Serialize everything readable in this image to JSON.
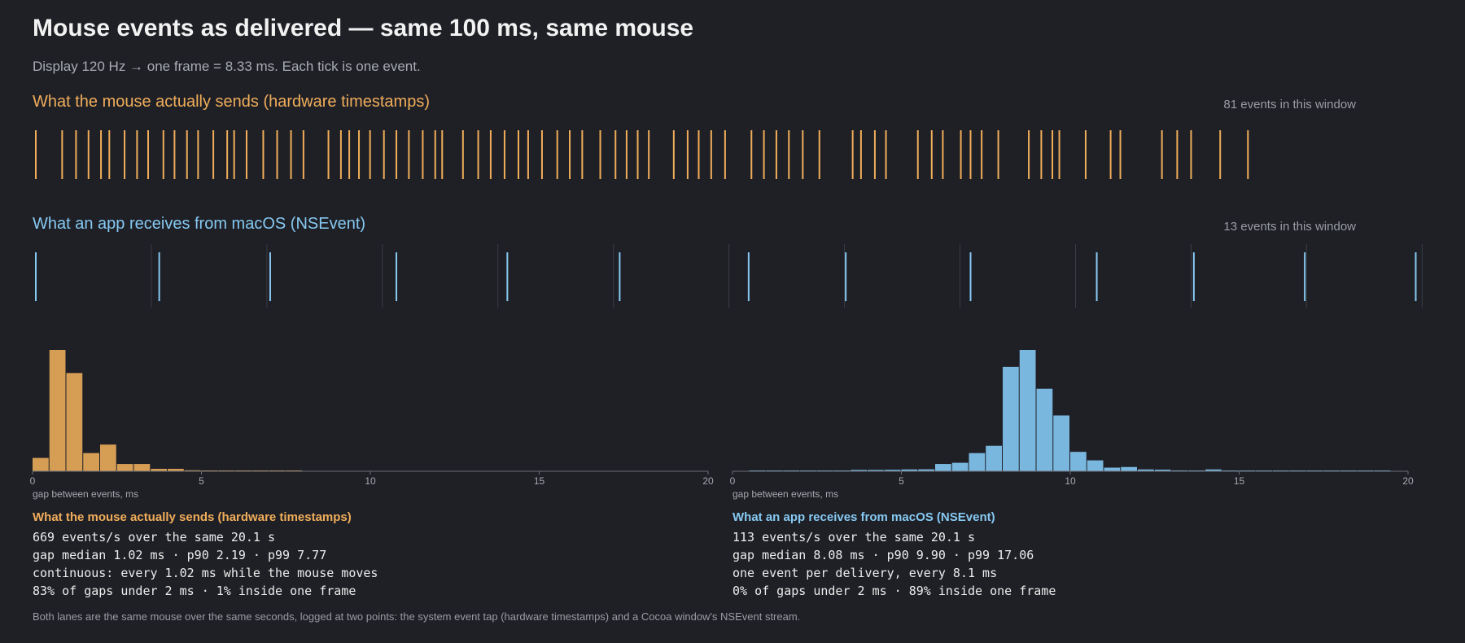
{
  "header": {
    "title": "Mouse events as delivered — same 100 ms, same mouse",
    "subtitle": "Display 120 Hz → one frame = 8.33 ms. Each tick is one event."
  },
  "colors": {
    "hardware": "#f0ad5a",
    "app": "#86c9f2",
    "hardware_bar": "#d69d54",
    "app_bar": "#7ab7df",
    "frame_line": "#3a3c44",
    "axis": "#6b6e76"
  },
  "lanes": {
    "hardware": {
      "label": "What the mouse actually sends (hardware timestamps)",
      "count_text": "81 events in this window"
    },
    "app": {
      "label": "What an app receives from macOS (NSEvent)",
      "count_text": "13 events in this window"
    }
  },
  "chart_data": [
    {
      "type": "scatter",
      "name": "hardware-event-ticks",
      "x_unit": "ms",
      "xlim": [
        0,
        100
      ],
      "x": [
        0.0,
        1.9,
        2.9,
        3.8,
        4.7,
        5.3,
        6.4,
        7.3,
        8.1,
        9.2,
        10.0,
        10.9,
        11.7,
        12.8,
        13.8,
        14.3,
        15.2,
        16.4,
        17.4,
        18.4,
        19.3,
        21.1,
        22.0,
        22.6,
        23.3,
        24.1,
        25.1,
        26.0,
        26.9,
        27.9,
        28.8,
        29.3,
        30.8,
        31.9,
        32.8,
        33.8,
        34.8,
        35.5,
        36.5,
        37.6,
        38.5,
        39.4,
        40.7,
        41.8,
        42.6,
        43.4,
        44.2,
        46.0,
        47.0,
        47.8,
        48.7,
        49.7,
        51.6,
        52.5,
        53.4,
        54.3,
        55.3,
        56.5,
        58.9,
        59.5,
        60.5,
        61.3,
        63.6,
        64.6,
        65.4,
        66.7,
        67.4,
        68.2,
        69.4,
        71.6,
        72.5,
        73.3,
        73.8,
        75.7,
        77.5,
        78.2,
        81.2,
        82.3,
        83.3,
        85.4,
        87.4
      ]
    },
    {
      "type": "scatter",
      "name": "app-event-ticks",
      "x_unit": "ms",
      "xlim": [
        0,
        100
      ],
      "frame_ms": 8.33,
      "x": [
        0.0,
        8.9,
        16.9,
        26.0,
        34.0,
        42.1,
        51.4,
        58.4,
        67.4,
        76.5,
        83.5,
        91.5,
        99.5
      ]
    },
    {
      "type": "bar",
      "name": "hardware-gap-histogram",
      "xlabel": "gap between events, ms",
      "xlim": [
        0,
        20
      ],
      "bin_width": 0.5,
      "x_ticks": [
        0,
        5,
        10,
        15,
        20
      ],
      "values": [
        11,
        100,
        81,
        15,
        22,
        6,
        6,
        2,
        2,
        0.8,
        0.4,
        0.2,
        0.2,
        0.1,
        0.1,
        0.1,
        0,
        0,
        0,
        0,
        0,
        0,
        0,
        0,
        0,
        0,
        0,
        0,
        0,
        0,
        0,
        0,
        0,
        0,
        0,
        0,
        0,
        0,
        0,
        0
      ]
    },
    {
      "type": "bar",
      "name": "app-gap-histogram",
      "xlabel": "gap between events, ms",
      "xlim": [
        0,
        20
      ],
      "bin_width": 0.5,
      "x_ticks": [
        0,
        5,
        10,
        15,
        20
      ],
      "values": [
        0,
        0.3,
        0.3,
        0.3,
        0.4,
        0.6,
        0.6,
        1.1,
        1.1,
        1.2,
        1.5,
        1.6,
        6,
        7,
        15,
        21,
        86,
        100,
        68,
        46,
        16,
        9,
        3,
        3.5,
        1.5,
        1.3,
        0.7,
        0.4,
        1.5,
        0.5,
        0.3,
        0.2,
        0.4,
        0.3,
        0.1,
        0.3,
        0.2,
        0.1,
        0.1,
        0
      ]
    }
  ],
  "stats": {
    "hardware": {
      "heading": "What the mouse actually sends (hardware timestamps)",
      "lines": [
        "669 events/s over the same 20.1 s",
        "gap median 1.02 ms · p90 2.19 · p99 7.77",
        "continuous: every 1.02 ms while the mouse moves",
        "83% of gaps under 2 ms · 1% inside one frame"
      ]
    },
    "app": {
      "heading": "What an app receives from macOS (NSEvent)",
      "lines": [
        "113 events/s over the same 20.1 s",
        "gap median 8.08 ms · p90 9.90 · p99 17.06",
        "one event per delivery, every 8.1 ms",
        "0% of gaps under 2 ms · 89% inside one frame"
      ]
    }
  },
  "hist_caption": "gap between events, ms",
  "footnote": "Both lanes are the same mouse over the same seconds, logged at two points: the system event tap (hardware timestamps) and a Cocoa window's NSEvent stream."
}
